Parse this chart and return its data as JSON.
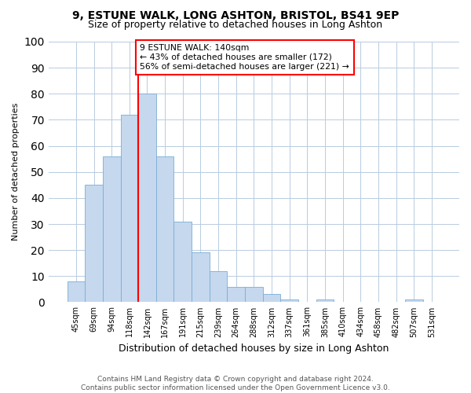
{
  "title_line1": "9, ESTUNE WALK, LONG ASHTON, BRISTOL, BS41 9EP",
  "title_line2": "Size of property relative to detached houses in Long Ashton",
  "xlabel": "Distribution of detached houses by size in Long Ashton",
  "ylabel": "Number of detached properties",
  "footer_line1": "Contains HM Land Registry data © Crown copyright and database right 2024.",
  "footer_line2": "Contains public sector information licensed under the Open Government Licence v3.0.",
  "categories": [
    "45sqm",
    "69sqm",
    "94sqm",
    "118sqm",
    "142sqm",
    "167sqm",
    "191sqm",
    "215sqm",
    "239sqm",
    "264sqm",
    "288sqm",
    "312sqm",
    "337sqm",
    "361sqm",
    "385sqm",
    "410sqm",
    "434sqm",
    "458sqm",
    "482sqm",
    "507sqm",
    "531sqm"
  ],
  "values": [
    8,
    45,
    56,
    72,
    80,
    56,
    31,
    19,
    12,
    6,
    6,
    3,
    1,
    0,
    1,
    0,
    0,
    0,
    0,
    1,
    0
  ],
  "bar_color": "#c5d8ee",
  "bar_edge_color": "#7aadd4",
  "vline_x_index": 4,
  "vline_color": "red",
  "annotation_text": "9 ESTUNE WALK: 140sqm\n← 43% of detached houses are smaller (172)\n56% of semi-detached houses are larger (221) →",
  "annotation_box_color": "white",
  "annotation_box_edge_color": "red",
  "ylim": [
    0,
    100
  ],
  "yticks": [
    0,
    10,
    20,
    30,
    40,
    50,
    60,
    70,
    80,
    90,
    100
  ],
  "grid_color": "#b8cce0",
  "background_color": "white",
  "plot_bg_color": "white"
}
